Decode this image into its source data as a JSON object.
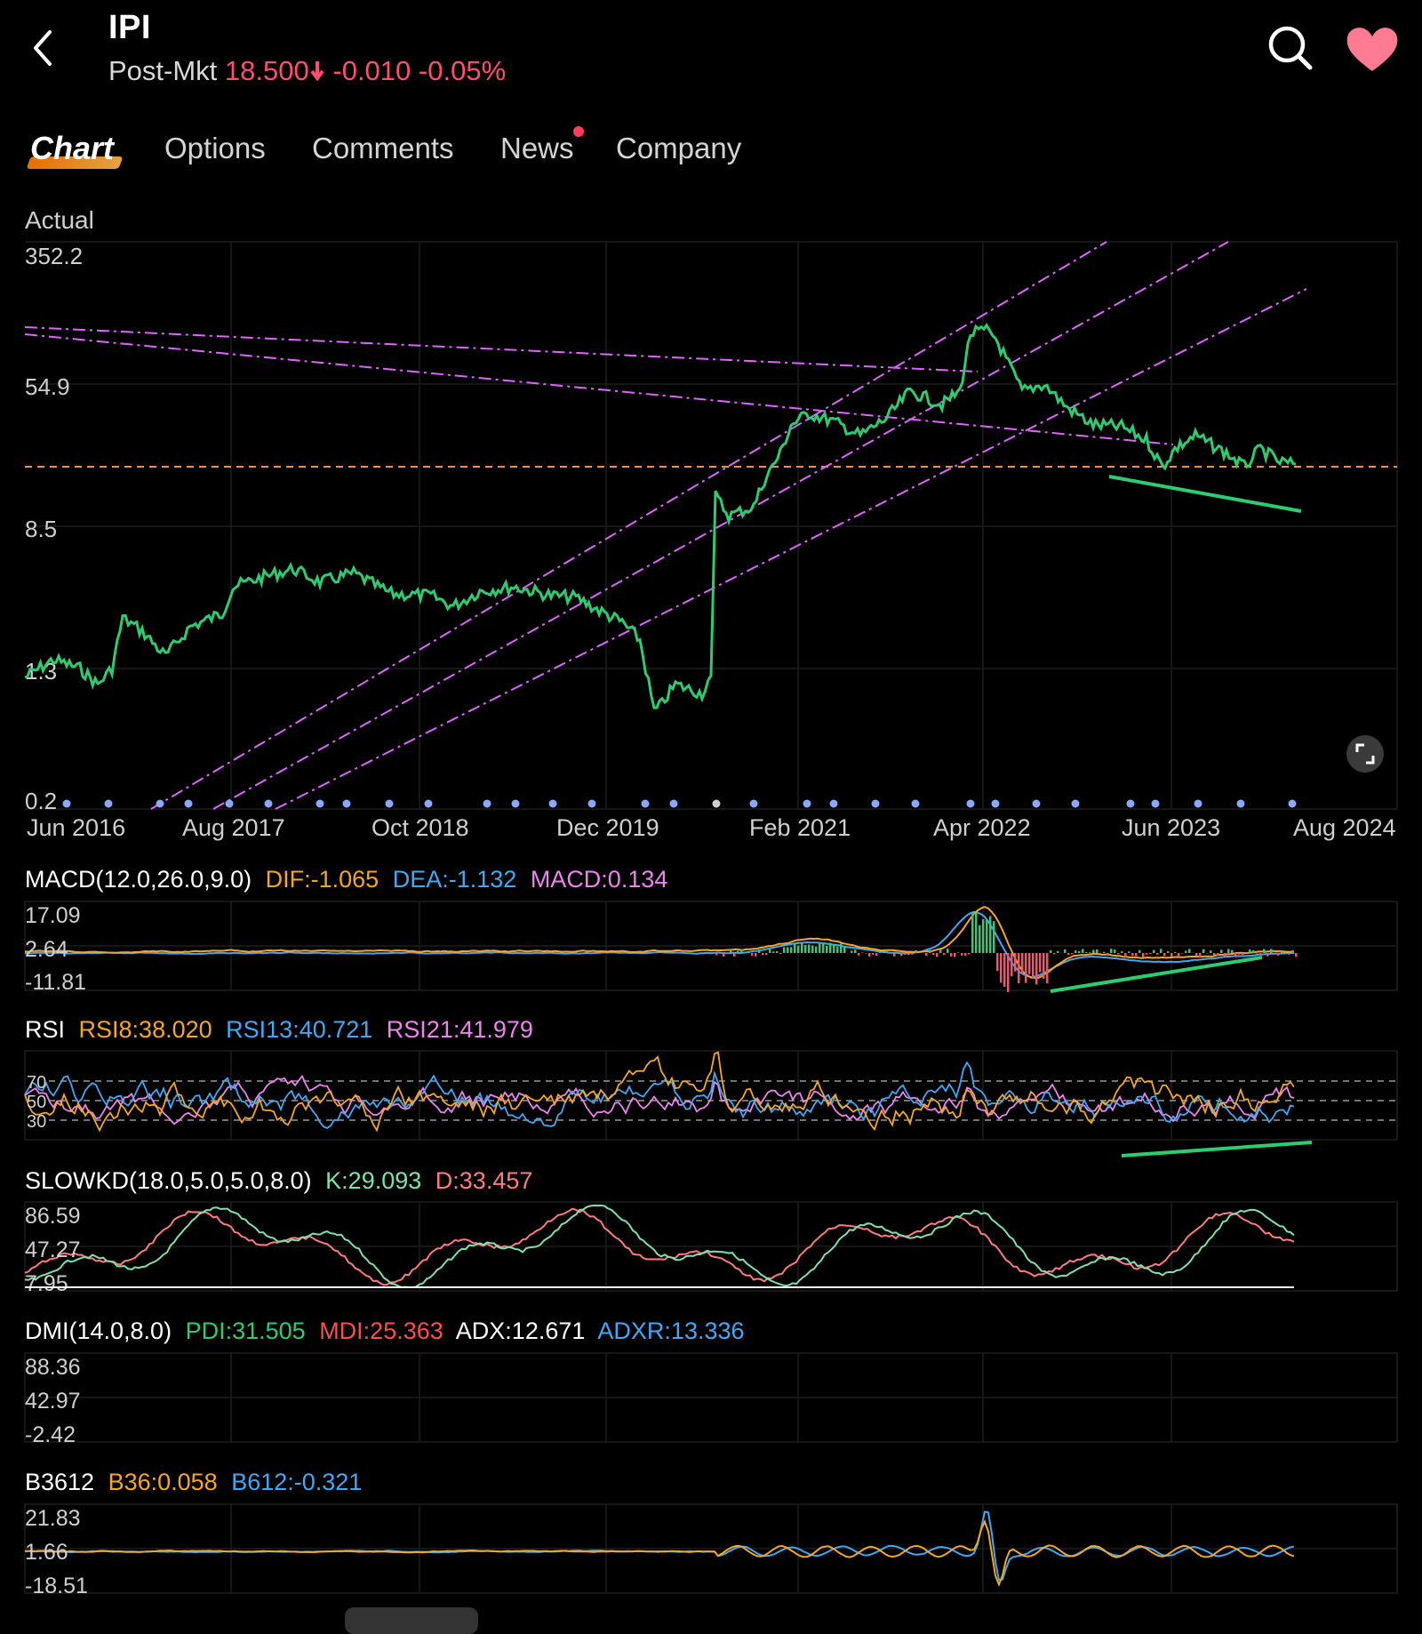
{
  "header": {
    "ticker": "IPI",
    "session_label": "Post-Mkt",
    "price": "18.500",
    "change": "-0.010",
    "change_pct": "-0.05%",
    "down_color": "#ff4d6d"
  },
  "icons": {
    "back": "chevron-left-icon",
    "search": "search-icon",
    "favorite": "heart-icon",
    "expand": "expand-icon",
    "price_arrow": "arrow-down-icon"
  },
  "tabs": [
    {
      "label": "Chart",
      "active": true
    },
    {
      "label": "Options"
    },
    {
      "label": "Comments"
    },
    {
      "label": "News",
      "badge": true
    },
    {
      "label": "Company"
    }
  ],
  "main_chart": {
    "mode_label": "Actual",
    "y_ticks": [
      "352.2",
      "54.9",
      "8.5",
      "1.3",
      "0.2"
    ],
    "x_ticks": [
      "Jun 2016",
      "Aug 2017",
      "Oct 2018",
      "Dec 2019",
      "Feb 2021",
      "Apr 2022",
      "Jun 2023",
      "Aug 2024"
    ],
    "line_color": "#2ecc71",
    "trendline_color": "#e065ff",
    "hline_color": "#ff8c42"
  },
  "indicators": {
    "macd": {
      "name": "MACD(12.0,26.0,9.0)",
      "dif": "DIF:-1.065",
      "dea": "DEA:-1.132",
      "macd": "MACD:0.134",
      "y_ticks": [
        "17.09",
        "2.64",
        "-11.81"
      ]
    },
    "rsi": {
      "name": "RSI",
      "rsi8": "RSI8:38.020",
      "rsi13": "RSI13:40.721",
      "rsi21": "RSI21:41.979",
      "y_ticks": [
        "70",
        "50",
        "30"
      ]
    },
    "slowkd": {
      "name": "SLOWKD(18.0,5.0,5.0,8.0)",
      "k": "K:29.093",
      "d": "D:33.457",
      "y_ticks": [
        "86.59",
        "47.27",
        "7.95"
      ]
    },
    "dmi": {
      "name": "DMI(14.0,8.0)",
      "pdi": "PDI:31.505",
      "mdi": "MDI:25.363",
      "adx": "ADX:12.671",
      "adxr": "ADXR:13.336",
      "y_ticks": [
        "88.36",
        "42.97",
        "-2.42"
      ]
    },
    "b3612": {
      "name": "B3612",
      "b36": "B36:0.058",
      "b612": "B612:-0.321",
      "y_ticks": [
        "21.83",
        "1.66",
        "-18.51"
      ]
    }
  },
  "colors": {
    "orange": "#f5a623",
    "blue": "#3fa9f5",
    "pink": "#ee82ee",
    "green": "#2ecc71",
    "red": "#ff4d6d",
    "white": "#ffffff"
  }
}
